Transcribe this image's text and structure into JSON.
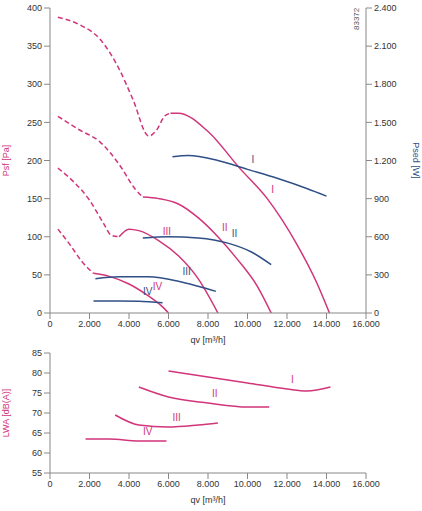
{
  "chart_data": [
    {
      "type": "line",
      "x_label": "qv [m³/h]",
      "y_label": "Psf [Pa]",
      "y2_label": "Psed [W]",
      "annotations": [
        "83372"
      ],
      "grid": false,
      "xlim": [
        0,
        16000
      ],
      "xticks": [
        0,
        {
          "value": 2000,
          "label": "2.000"
        },
        {
          "value": 4000,
          "label": "4.000"
        },
        {
          "value": 6000,
          "label": "6.000"
        },
        {
          "value": 8000,
          "label": "8.000"
        },
        {
          "value": 10000,
          "label": "10.000"
        },
        {
          "value": 12000,
          "label": "12.000"
        },
        {
          "value": 14000,
          "label": "14.000"
        },
        {
          "value": 16000,
          "label": "16.000"
        }
      ],
      "ylim": [
        0,
        400
      ],
      "yticks": [
        0,
        50,
        100,
        150,
        200,
        250,
        300,
        350,
        400
      ],
      "y2lim": [
        0,
        2400
      ],
      "y2ticks": [
        0,
        300,
        600,
        900,
        {
          "value": 1200,
          "label": "1.200"
        },
        {
          "value": 1500,
          "label": "1.500"
        },
        {
          "value": 1800,
          "label": "1.800"
        },
        {
          "value": 2100,
          "label": "2.100"
        },
        {
          "value": 2400,
          "label": "2.400"
        }
      ],
      "series": [
        {
          "color": "#d1357a",
          "line_style": "dashed",
          "x": [
            400,
            1500,
            2500,
            3500,
            4200,
            5000,
            5400,
            5800,
            6100
          ],
          "values": [
            388,
            378,
            360,
            320,
            280,
            232,
            240,
            258,
            262
          ]
        },
        {
          "name": "I",
          "color": "#d1357a",
          "line_style": "solid",
          "x": [
            6100,
            6500,
            8000,
            9600,
            11000,
            12500,
            13500,
            14150
          ],
          "values": [
            262,
            262,
            238,
            190,
            150,
            90,
            40,
            0
          ]
        },
        {
          "color": "#d1357a",
          "line_style": "dashed",
          "x": [
            400,
            1500,
            2500,
            3500,
            4300,
            4700
          ],
          "values": [
            258,
            240,
            225,
            195,
            163,
            152
          ]
        },
        {
          "name": "II",
          "color": "#d1357a",
          "line_style": "solid",
          "x": [
            4700,
            5500,
            6500,
            7500,
            8500,
            9500,
            10500,
            11200
          ],
          "values": [
            152,
            150,
            143,
            125,
            100,
            70,
            35,
            0
          ]
        },
        {
          "color": "#d1357a",
          "line_style": "dashed",
          "x": [
            400,
            1200,
            2000,
            2700,
            3100,
            3500
          ],
          "values": [
            190,
            172,
            148,
            118,
            102,
            100
          ]
        },
        {
          "name": "III",
          "color": "#d1357a",
          "line_style": "solid",
          "x": [
            3500,
            4000,
            4500,
            5500,
            6500,
            7500,
            8500
          ],
          "values": [
            100,
            110,
            108,
            95,
            75,
            45,
            0
          ]
        },
        {
          "color": "#d1357a",
          "line_style": "dashed",
          "x": [
            400,
            1000,
            1600,
            2200
          ],
          "values": [
            110,
            90,
            68,
            52
          ]
        },
        {
          "name": "IV",
          "color": "#d1357a",
          "line_style": "solid",
          "x": [
            2200,
            3000,
            4000,
            5000,
            5700,
            6000
          ],
          "values": [
            52,
            48,
            38,
            22,
            8,
            0
          ]
        },
        {
          "name": "I",
          "color": "#2f4f86",
          "line_style": "solid",
          "axis": "y2",
          "x": [
            6200,
            7000,
            8500,
            10000,
            11500,
            13000,
            14000
          ],
          "values": [
            1230,
            1240,
            1200,
            1130,
            1060,
            980,
            920
          ]
        },
        {
          "name": "II",
          "color": "#2f4f86",
          "line_style": "solid",
          "axis": "y2",
          "x": [
            4700,
            6000,
            7500,
            9000,
            10200,
            11200
          ],
          "values": [
            590,
            600,
            590,
            550,
            480,
            380
          ]
        },
        {
          "name": "III",
          "color": "#2f4f86",
          "line_style": "solid",
          "axis": "y2",
          "x": [
            2300,
            3500,
            5000,
            6500,
            7500,
            8400
          ],
          "values": [
            270,
            285,
            285,
            250,
            210,
            170
          ]
        },
        {
          "name": "IV",
          "color": "#2f4f86",
          "line_style": "solid",
          "axis": "y2",
          "x": [
            2200,
            3500,
            4500,
            5700
          ],
          "values": [
            95,
            95,
            92,
            80
          ]
        }
      ]
    },
    {
      "type": "line",
      "x_label": "qv [m³/h]",
      "y_label": "LWA [dB(A)]",
      "grid": false,
      "xlim": [
        0,
        16000
      ],
      "xticks": [
        0,
        {
          "value": 2000,
          "label": "2.000"
        },
        {
          "value": 4000,
          "label": "4.000"
        },
        {
          "value": 6000,
          "label": "6.000"
        },
        {
          "value": 8000,
          "label": "8.000"
        },
        {
          "value": 10000,
          "label": "10.000"
        },
        {
          "value": 12000,
          "label": "12.000"
        },
        {
          "value": 14000,
          "label": "14.000"
        },
        {
          "value": 16000,
          "label": "16.000"
        }
      ],
      "ylim": [
        55,
        85
      ],
      "yticks": [
        55,
        60,
        65,
        70,
        75,
        80,
        85
      ],
      "series": [
        {
          "name": "I",
          "color": "#d1357a",
          "line_style": "solid",
          "x": [
            6000,
            8000,
            10000,
            12000,
            13000,
            14200
          ],
          "values": [
            80.5,
            79,
            77.5,
            76,
            75.5,
            76.5
          ]
        },
        {
          "name": "II",
          "color": "#d1357a",
          "line_style": "solid",
          "x": [
            4500,
            6000,
            8000,
            10000,
            11100
          ],
          "values": [
            76.5,
            74,
            72.5,
            71.5,
            71.5
          ]
        },
        {
          "name": "III",
          "color": "#d1357a",
          "line_style": "solid",
          "x": [
            3300,
            4500,
            6000,
            7500,
            8500
          ],
          "values": [
            69.5,
            67,
            66.5,
            67,
            67.5
          ]
        },
        {
          "name": "IV",
          "color": "#d1357a",
          "line_style": "solid",
          "x": [
            1800,
            3000,
            4500,
            5900
          ],
          "values": [
            63.5,
            63.5,
            63,
            63
          ]
        }
      ]
    }
  ]
}
